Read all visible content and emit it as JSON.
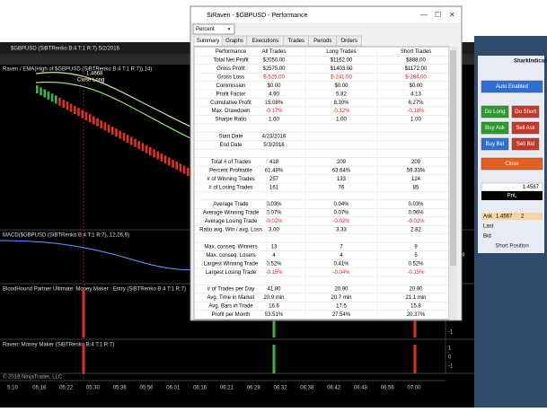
{
  "chart": {
    "title": "$GBPUSD (SiBTRenko B:4 T:1 R:7)  5/2/2016",
    "panels": [
      "Raven / EMA(High of $GBPUSD (SiBTRenko B:4 T:1 R:7)),14)",
      "MACD($GBPUSD (SiBTRenko B:4 T:1 R:7), 12,26,9)",
      "BloodHound Partner Ultimate: Money Maker : Entry (SiBTRenko B:4 T:1 R:7)",
      "Raven: Money Maker (SiBTRenko B:4 T:1 R:7)"
    ],
    "annotations": [
      "Close Long",
      "1.4668"
    ],
    "axis_labels": [
      "1.4604",
      "1",
      "0",
      "-1",
      "1",
      "0",
      "-1"
    ],
    "time_labels": [
      "5:10",
      "05:16",
      "05:22",
      "05:30",
      "05:36",
      "05:56",
      "06:01",
      "06:16",
      "06:21",
      "06:28",
      "06:32",
      "06:38",
      "06:42",
      "06:48",
      "06:56",
      "07:00"
    ],
    "copyright": "© 2016 NinjaTrader, LLC"
  },
  "side_panel": {
    "brand": "SharkIndicators",
    "buttons": [
      "Auto Enabled",
      "Go Long",
      "Go Short",
      "Buy Ask",
      "Sell Ask",
      "Buy Bid",
      "Sell Bid",
      "Close"
    ],
    "price": "1.4567",
    "pnl_label": "PnL",
    "ladder": [
      "Ask",
      "1.4567",
      "2",
      "Last",
      "Bid"
    ],
    "position": "Short Position"
  },
  "dialog": {
    "title": "SiRaven - $GBPUSD - Performance",
    "mode": "Percent",
    "tabs": [
      "Summary",
      "Graphs",
      "Executions",
      "Trades",
      "Periods",
      "Orders"
    ],
    "headers": [
      "Performance",
      "All Trades",
      "Long Trades",
      "Short Trades"
    ],
    "sections": [
      [
        [
          "Total Net Profit",
          "$2050.00",
          "$1162.00",
          "$888.00"
        ],
        [
          "Gross Profit",
          "$2575.00",
          "$1403.00",
          "$1172.00"
        ],
        [
          "Gross Loss",
          "$-525.00",
          "$-241.00",
          "$-284.00"
        ],
        [
          "Commission",
          "$0.00",
          "$0.00",
          "$0.00"
        ],
        [
          "Profit Factor",
          "4.90",
          "5.82",
          "4.13"
        ],
        [
          "Cumulative Profit",
          "15.08%",
          "8.30%",
          "6.27%"
        ],
        [
          "Max. Drawdown",
          "-0.17%",
          "-0.12%",
          "-0.18%"
        ],
        [
          "Sharpe Ratio",
          "1.00",
          "1.00",
          "1.00"
        ]
      ],
      [
        [
          "Start Date",
          "4/23/2016"
        ],
        [
          "End Date",
          "5/3/2016"
        ]
      ],
      [
        [
          "Total # of Trades",
          "418",
          "209",
          "209"
        ],
        [
          "Percent Profitable",
          "61.48%",
          "63.64%",
          "59.33%"
        ],
        [
          "# of Winning Trades",
          "257",
          "133",
          "124"
        ],
        [
          "# of Losing Trades",
          "161",
          "76",
          "85"
        ]
      ],
      [
        [
          "Average Trade",
          "0.03%",
          "0.04%",
          "0.03%"
        ],
        [
          "Average Winning Trade",
          "0.07%",
          "0.07%",
          "0.06%"
        ],
        [
          "Average Losing Trade",
          "-0.02%",
          "-0.02%",
          "-0.02%"
        ],
        [
          "Ratio avg. Win / avg. Loss",
          "3.00",
          "3.33",
          "2.82"
        ]
      ],
      [
        [
          "Max. conseq. Winners",
          "13",
          "7",
          "9"
        ],
        [
          "Max. conseq. Losers",
          "4",
          "4",
          "5"
        ],
        [
          "Largest Winning Trade",
          "0.52%",
          "0.41%",
          "0.52%"
        ],
        [
          "Largest Losing Trade",
          "-0.15%",
          "-0.04%",
          "-0.15%"
        ]
      ],
      [
        [
          "# of Trades per Day",
          "41.80",
          "20.90",
          "20.90"
        ],
        [
          "Avg. Time in Market",
          "20.9 min",
          "20.7 min",
          "21.1 min"
        ],
        [
          "Avg. Bars in Trade",
          "16.6",
          "17.5",
          "15.8"
        ],
        [
          "Profit per Month",
          "53.51%",
          "27.54%",
          "20.37%"
        ]
      ]
    ]
  }
}
